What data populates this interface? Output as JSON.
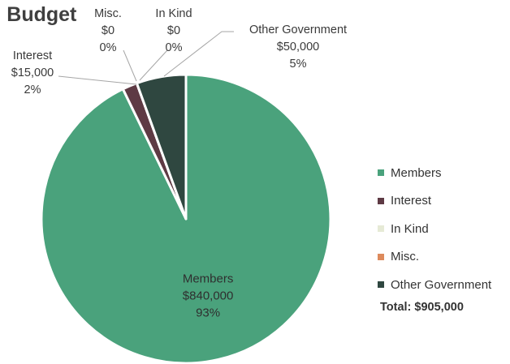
{
  "title": ": Budget",
  "chart_data": {
    "type": "pie",
    "title": ": Budget",
    "slices": [
      {
        "name": "Members",
        "value": 840000,
        "value_label": "$840,000",
        "percent_label": "93%",
        "color": "#4aa27c"
      },
      {
        "name": "Interest",
        "value": 15000,
        "value_label": "$15,000",
        "percent_label": "2%",
        "color": "#5e3a44"
      },
      {
        "name": "In Kind",
        "value": 0,
        "value_label": "$0",
        "percent_label": "0%",
        "color": "#e6ead6"
      },
      {
        "name": "Misc.",
        "value": 0,
        "value_label": "$0",
        "percent_label": "0%",
        "color": "#dd8a5c"
      },
      {
        "name": "Other Government",
        "value": 50000,
        "value_label": "$50,000",
        "percent_label": "5%",
        "color": "#2f4740"
      }
    ],
    "legend": {
      "position": "right",
      "entries": [
        "Members",
        "Interest",
        "In Kind",
        "Misc.",
        "Other Government"
      ]
    },
    "total_label": "Total: $905,000"
  }
}
